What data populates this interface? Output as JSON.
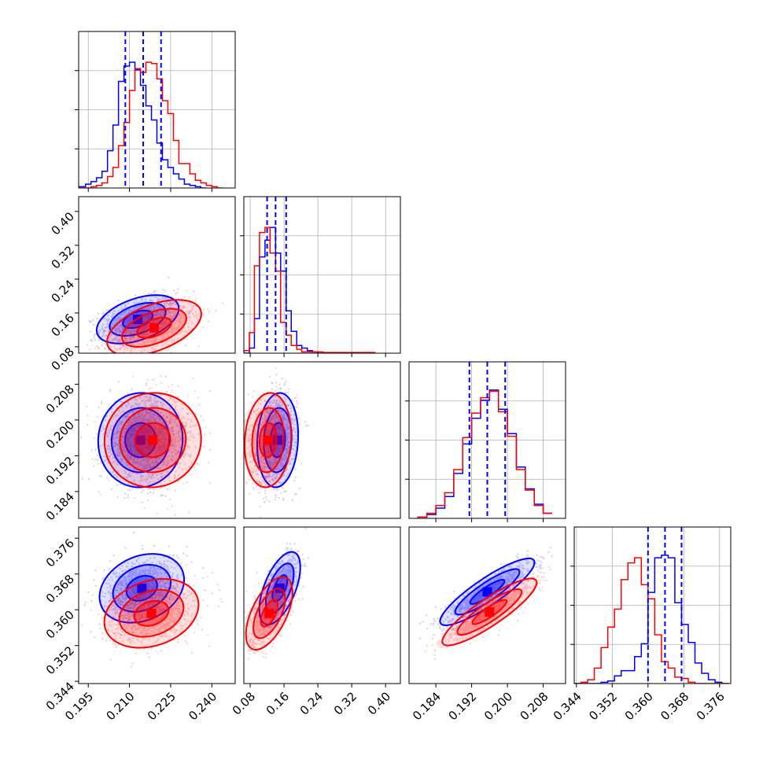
{
  "chart_data": {
    "type": "corner",
    "colors": {
      "series_a": "#0000ff",
      "series_b": "#ff0000",
      "grid": "#b0b0b0"
    },
    "series": [
      {
        "color": "#0000ff"
      },
      {
        "color": "#ff0000"
      }
    ],
    "params": [
      {
        "range": [
          0.1915,
          0.2485
        ],
        "ticks": [
          0.195,
          0.21,
          0.225,
          0.24
        ],
        "tick_labels": [
          "0.195",
          "0.210",
          "0.225",
          "0.240"
        ]
      },
      {
        "range": [
          0.065,
          0.435
        ],
        "ticks": [
          0.08,
          0.16,
          0.24,
          0.32,
          0.4
        ],
        "tick_labels": [
          "0.08",
          "0.16",
          "0.24",
          "0.32",
          "0.40"
        ]
      },
      {
        "range": [
          0.178,
          0.213
        ],
        "ticks": [
          0.184,
          0.192,
          0.2,
          0.208
        ],
        "tick_labels": [
          "0.184",
          "0.192",
          "0.200",
          "0.208"
        ]
      },
      {
        "range": [
          0.3435,
          0.3785
        ],
        "ticks": [
          0.344,
          0.352,
          0.36,
          0.368,
          0.376
        ],
        "tick_labels": [
          "0.344",
          "0.352",
          "0.360",
          "0.368",
          "0.376"
        ]
      }
    ],
    "marginals": [
      {
        "quantiles_series_a": [
          0.2085,
          0.215,
          0.2215
        ],
        "series_a": {
          "edges": [
            0.1915,
            0.194,
            0.196,
            0.198,
            0.2,
            0.202,
            0.204,
            0.206,
            0.208,
            0.21,
            0.212,
            0.214,
            0.216,
            0.218,
            0.22,
            0.222,
            0.224,
            0.226,
            0.228,
            0.23,
            0.232,
            0.234,
            0.236,
            0.238
          ],
          "counts": [
            0.01,
            0.03,
            0.05,
            0.08,
            0.13,
            0.29,
            0.49,
            0.83,
            0.95,
            0.98,
            0.92,
            0.8,
            0.64,
            0.53,
            0.35,
            0.22,
            0.16,
            0.11,
            0.07,
            0.03,
            0.02,
            0.01,
            0.0
          ]
        },
        "series_b": {
          "edges": [
            0.1915,
            0.194,
            0.196,
            0.198,
            0.2,
            0.202,
            0.204,
            0.206,
            0.208,
            0.21,
            0.212,
            0.214,
            0.216,
            0.218,
            0.22,
            0.222,
            0.224,
            0.226,
            0.228,
            0.23,
            0.232,
            0.234,
            0.236,
            0.238,
            0.24,
            0.242,
            0.244
          ],
          "counts": [
            0.0,
            0.0,
            0.01,
            0.02,
            0.04,
            0.09,
            0.16,
            0.33,
            0.51,
            0.76,
            0.93,
            0.9,
            0.98,
            0.97,
            0.85,
            0.68,
            0.58,
            0.37,
            0.19,
            0.19,
            0.11,
            0.06,
            0.04,
            0.02,
            0.01,
            0.0
          ]
        }
      },
      {
        "quantiles_series_a": [
          0.12,
          0.14,
          0.165
        ],
        "series_a": {
          "edges": [
            0.065,
            0.078,
            0.09,
            0.102,
            0.115,
            0.127,
            0.14,
            0.152,
            0.165,
            0.177,
            0.19,
            0.202,
            0.215,
            0.227,
            0.239,
            0.252,
            0.264,
            0.277,
            0.289,
            0.301
          ],
          "counts": [
            0.0,
            0.04,
            0.27,
            0.75,
            0.88,
            0.98,
            0.78,
            0.64,
            0.33,
            0.17,
            0.06,
            0.04,
            0.02,
            0.01,
            0.0,
            0.0,
            0.0,
            0.0,
            0.0
          ]
        },
        "series_b": {
          "edges": [
            0.065,
            0.078,
            0.09,
            0.102,
            0.115,
            0.127,
            0.14,
            0.152,
            0.165,
            0.177,
            0.19,
            0.202,
            0.215,
            0.227,
            0.239,
            0.252,
            0.264,
            0.277,
            0.289,
            0.301,
            0.314,
            0.326,
            0.339,
            0.351,
            0.363,
            0.376
          ],
          "counts": [
            0.02,
            0.16,
            0.68,
            0.94,
            0.98,
            0.78,
            0.64,
            0.24,
            0.14,
            0.06,
            0.03,
            0.01,
            0.01,
            0.01,
            0.01,
            0.005,
            0.005,
            0.005,
            0.005,
            0.005,
            0.005,
            0.005,
            0.005,
            0.005,
            0.005
          ]
        }
      },
      {
        "quantiles_series_a": [
          0.1915,
          0.1955,
          0.1995
        ],
        "series_a": {
          "edges": [
            0.18,
            0.182,
            0.184,
            0.186,
            0.188,
            0.19,
            0.192,
            0.194,
            0.196,
            0.198,
            0.2,
            0.202,
            0.204,
            0.206,
            0.208,
            0.21
          ],
          "counts": [
            0.01,
            0.03,
            0.08,
            0.17,
            0.35,
            0.58,
            0.78,
            0.92,
            1.0,
            0.85,
            0.66,
            0.4,
            0.23,
            0.11,
            0.04
          ]
        },
        "series_b": {
          "edges": [
            0.18,
            0.182,
            0.184,
            0.186,
            0.188,
            0.19,
            0.192,
            0.194,
            0.196,
            0.198,
            0.2,
            0.202,
            0.204,
            0.206,
            0.208,
            0.21
          ],
          "counts": [
            0.01,
            0.04,
            0.1,
            0.2,
            0.38,
            0.63,
            0.82,
            0.94,
            0.99,
            0.83,
            0.64,
            0.38,
            0.22,
            0.1,
            0.04
          ]
        }
      },
      {
        "quantiles_series_a": [
          0.36,
          0.3638,
          0.3675
        ],
        "series_a": {
          "edges": [
            0.3435,
            0.345,
            0.3465,
            0.348,
            0.3495,
            0.351,
            0.3525,
            0.354,
            0.3555,
            0.357,
            0.3585,
            0.36,
            0.3615,
            0.363,
            0.3645,
            0.366,
            0.3675,
            0.369,
            0.3705,
            0.372,
            0.3735,
            0.375,
            0.3765,
            0.378
          ],
          "counts": [
            0.0,
            0.0,
            0.0,
            0.0,
            0.01,
            0.02,
            0.06,
            0.1,
            0.1,
            0.21,
            0.31,
            0.71,
            0.98,
            1.0,
            0.98,
            0.63,
            0.46,
            0.32,
            0.16,
            0.08,
            0.03,
            0.01,
            0.0
          ]
        },
        "series_b": {
          "edges": [
            0.3435,
            0.345,
            0.3465,
            0.348,
            0.3495,
            0.351,
            0.3525,
            0.354,
            0.3555,
            0.357,
            0.3585,
            0.36,
            0.3615,
            0.363,
            0.3645,
            0.366,
            0.3675,
            0.369,
            0.3705,
            0.372,
            0.3735,
            0.375,
            0.3765,
            0.378
          ],
          "counts": [
            0.0,
            0.01,
            0.03,
            0.12,
            0.28,
            0.44,
            0.58,
            0.81,
            0.94,
            0.98,
            0.77,
            0.66,
            0.38,
            0.17,
            0.12,
            0.05,
            0.04,
            0.01,
            0.0,
            0.0,
            0.0,
            0.0,
            0.0
          ]
        }
      }
    ],
    "pairs": [
      {
        "row": 1,
        "col": 0,
        "series_a": {
          "mean": [
            0.213,
            0.145
          ],
          "sd": [
            0.0068,
            0.026
          ],
          "rho": 0.45
        },
        "series_b": {
          "mean": [
            0.219,
            0.125
          ],
          "sd": [
            0.0078,
            0.03
          ],
          "rho": 0.5
        }
      },
      {
        "row": 2,
        "col": 0,
        "series_a": {
          "mean": [
            0.214,
            0.1955
          ],
          "sd": [
            0.007,
            0.0048
          ],
          "rho": 0.03
        },
        "series_b": {
          "mean": [
            0.2185,
            0.1955
          ],
          "sd": [
            0.008,
            0.0048
          ],
          "rho": 0.03
        }
      },
      {
        "row": 2,
        "col": 1,
        "series_a": {
          "mean": [
            0.145,
            0.1955
          ],
          "sd": [
            0.022,
            0.0048
          ],
          "rho": 0.1
        },
        "series_b": {
          "mean": [
            0.122,
            0.1955
          ],
          "sd": [
            0.025,
            0.0048
          ],
          "rho": 0.1
        }
      },
      {
        "row": 3,
        "col": 0,
        "series_a": {
          "mean": [
            0.2145,
            0.3648
          ],
          "sd": [
            0.007,
            0.0035
          ],
          "rho": 0.25
        },
        "series_b": {
          "mean": [
            0.218,
            0.3592
          ],
          "sd": [
            0.0078,
            0.0035
          ],
          "rho": 0.25
        }
      },
      {
        "row": 3,
        "col": 1,
        "series_a": {
          "mean": [
            0.15,
            0.3648
          ],
          "sd": [
            0.022,
            0.0037
          ],
          "rho": 0.58
        },
        "series_b": {
          "mean": [
            0.125,
            0.3592
          ],
          "sd": [
            0.025,
            0.0037
          ],
          "rho": 0.58
        }
      },
      {
        "row": 3,
        "col": 2,
        "series_a": {
          "mean": [
            0.1955,
            0.364
          ],
          "sd": [
            0.0048,
            0.0034
          ],
          "rho": 0.88
        },
        "series_b": {
          "mean": [
            0.196,
            0.3595
          ],
          "sd": [
            0.0048,
            0.0034
          ],
          "rho": 0.88
        }
      }
    ]
  }
}
